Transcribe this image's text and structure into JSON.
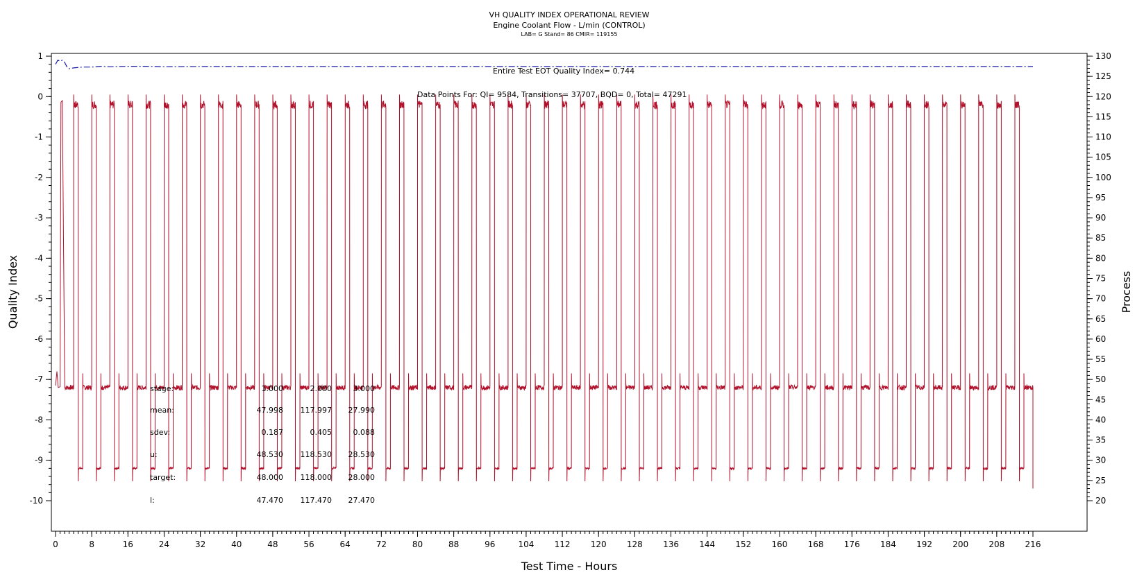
{
  "header": {
    "title": "VH QUALITY INDEX OPERATIONAL REVIEW",
    "subtitle": "Engine Coolant Flow - L/min (CONTROL)",
    "info": "LAB= G Stand= 86 CMIR= 119155"
  },
  "annotations": {
    "eot_qi": "Entire Test EOT Quality Index=  0.744",
    "data_points": "Data Points For: QI=  9584, Transitions= 37707, BQD=     0, Total= 47291"
  },
  "stats_table": {
    "rows": [
      {
        "label": "stage:",
        "values": [
          "1.000",
          "2.000",
          "3.000"
        ]
      },
      {
        "label": "mean:",
        "values": [
          "47.998",
          "117.997",
          "27.990"
        ]
      },
      {
        "label": "sdev:",
        "values": [
          "0.187",
          "0.405",
          "0.088"
        ]
      },
      {
        "label": "u:",
        "values": [
          "48.530",
          "118.530",
          "28.530"
        ]
      },
      {
        "label": "target:",
        "values": [
          "48.000",
          "118.000",
          "28.000"
        ]
      },
      {
        "label": "l:",
        "values": [
          "47.470",
          "117.470",
          "27.470"
        ]
      }
    ]
  },
  "colors": {
    "process_series": "#b0102a",
    "qi_series": "#1a1aa8",
    "axis": "#000000"
  },
  "chart_data": {
    "type": "line",
    "title": "VH QUALITY INDEX OPERATIONAL REVIEW",
    "subtitle": "Engine Coolant Flow - L/min (CONTROL)",
    "xlabel": "Test Time - Hours",
    "ylabel": "Quality Index",
    "y2label": "Process",
    "xlim": [
      0,
      216
    ],
    "ylim": [
      -10,
      1
    ],
    "y2lim": [
      20,
      130
    ],
    "x_ticks": [
      "0",
      "8",
      "16",
      "24",
      "32",
      "40",
      "48",
      "56",
      "64",
      "72",
      "80",
      "88",
      "96",
      "104",
      "112",
      "120",
      "128",
      "136",
      "144",
      "152",
      "160",
      "168",
      "176",
      "184",
      "192",
      "200",
      "208",
      "216"
    ],
    "y_ticks": [
      "1",
      "0",
      "-1",
      "-2",
      "-3",
      "-4",
      "-5",
      "-6",
      "-7",
      "-8",
      "-9",
      "-10"
    ],
    "y2_ticks": [
      "130",
      "125",
      "120",
      "115",
      "110",
      "105",
      "100",
      "95",
      "90",
      "85",
      "80",
      "75",
      "70",
      "65",
      "60",
      "55",
      "50",
      "45",
      "40",
      "35",
      "30",
      "25",
      "20"
    ],
    "grid": false,
    "series": [
      {
        "axis": "left",
        "style": "dash-dot",
        "x": [
          0,
          0.5,
          1,
          1.5,
          2,
          2.5,
          3,
          4,
          6,
          8,
          10,
          12,
          16,
          20,
          24,
          32,
          48,
          64,
          96,
          128,
          160,
          192,
          216
        ],
        "values": [
          0.8,
          0.9,
          0.88,
          0.9,
          0.85,
          0.74,
          0.69,
          0.71,
          0.73,
          0.73,
          0.75,
          0.74,
          0.75,
          0.75,
          0.74,
          0.745,
          0.745,
          0.745,
          0.744,
          0.744,
          0.744,
          0.744,
          0.744
        ]
      },
      {
        "axis": "right",
        "cycle_hours": 4,
        "stages": [
          {
            "stage": "1",
            "target": 48,
            "duration_hours": 2
          },
          {
            "stage": "2",
            "target": 118,
            "duration_hours": 1
          },
          {
            "stage": "3",
            "target": 28,
            "duration_hours": 1
          }
        ],
        "x_start": 2,
        "x_end": 216
      }
    ]
  }
}
